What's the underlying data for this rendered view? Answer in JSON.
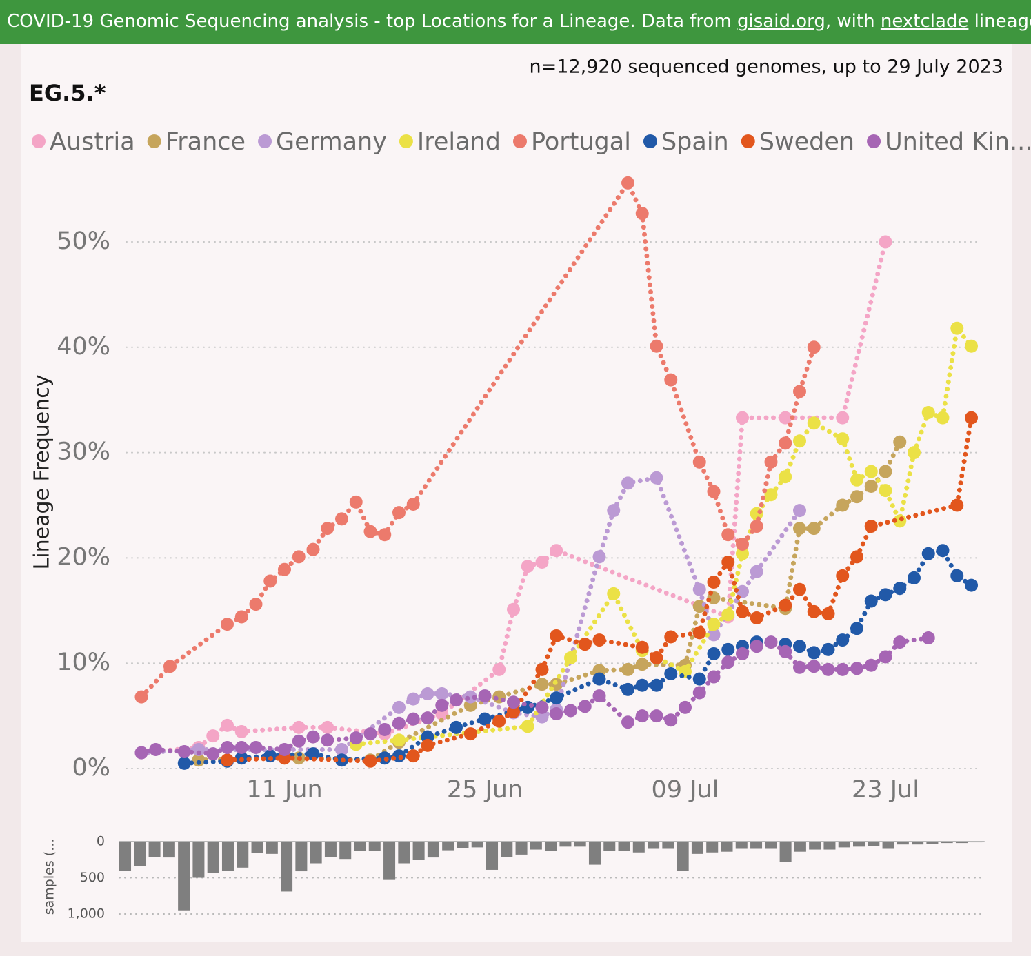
{
  "header": {
    "segments": [
      {
        "text": "COVID-19 Genomic Sequencing analysis - top Locations for a Lineage. Data from ",
        "link": false
      },
      {
        "text": "gisaid.org",
        "link": true
      },
      {
        "text": ", with ",
        "link": false
      },
      {
        "text": "nextclade",
        "link": true
      },
      {
        "text": " lineages Source fil",
        "link": false
      }
    ]
  },
  "chart_data": [
    {
      "type": "line",
      "title": "EG.5.*",
      "subtitle": "n=12,920 sequenced genomes, up to 29 July 2023",
      "ylabel": "Lineage Frequency",
      "legend": "top-left",
      "grid": true,
      "x": [
        "01 Jun",
        "02 Jun",
        "03 Jun",
        "04 Jun",
        "05 Jun",
        "06 Jun",
        "07 Jun",
        "08 Jun",
        "09 Jun",
        "10 Jun",
        "11 Jun",
        "12 Jun",
        "13 Jun",
        "14 Jun",
        "15 Jun",
        "16 Jun",
        "17 Jun",
        "18 Jun",
        "19 Jun",
        "20 Jun",
        "21 Jun",
        "22 Jun",
        "23 Jun",
        "24 Jun",
        "25 Jun",
        "26 Jun",
        "27 Jun",
        "28 Jun",
        "29 Jun",
        "30 Jun",
        "01 Jul",
        "02 Jul",
        "03 Jul",
        "04 Jul",
        "05 Jul",
        "06 Jul",
        "07 Jul",
        "08 Jul",
        "09 Jul",
        "10 Jul",
        "11 Jul",
        "12 Jul",
        "13 Jul",
        "14 Jul",
        "15 Jul",
        "16 Jul",
        "17 Jul",
        "18 Jul",
        "19 Jul",
        "20 Jul",
        "21 Jul",
        "22 Jul",
        "23 Jul",
        "24 Jul",
        "25 Jul",
        "26 Jul",
        "27 Jul",
        "28 Jul",
        "29 Jul"
      ],
      "xticks": [
        "11 Jun",
        "25 Jun",
        "09 Jul",
        "23 Jul"
      ],
      "ylim": [
        0,
        57
      ],
      "yticks": [
        {
          "value": 0,
          "label": "0%"
        },
        {
          "value": 10,
          "label": "10%"
        },
        {
          "value": 20,
          "label": "20%"
        },
        {
          "value": 30,
          "label": "30%"
        },
        {
          "value": 40,
          "label": "40%"
        },
        {
          "value": 50,
          "label": "50%"
        }
      ],
      "series": [
        {
          "name": "Austria",
          "color": "#f4a5c6",
          "x": [
            "01 Jun",
            "05 Jun",
            "06 Jun",
            "07 Jun",
            "08 Jun",
            "12 Jun",
            "14 Jun",
            "18 Jun",
            "22 Jun",
            "26 Jun",
            "27 Jun",
            "28 Jun",
            "29 Jun",
            "30 Jun",
            "12 Jul",
            "13 Jul",
            "16 Jul",
            "20 Jul",
            "23 Jul"
          ],
          "values": [
            1.5,
            2.0,
            3.1,
            4.1,
            3.5,
            3.9,
            3.9,
            3.3,
            5.2,
            9.4,
            15.1,
            19.2,
            19.6,
            20.7,
            14.4,
            33.3,
            33.3,
            33.3,
            50.0
          ]
        },
        {
          "name": "France",
          "color": "#c6a55c",
          "x": [
            "05 Jun",
            "11 Jun",
            "12 Jun",
            "17 Jun",
            "19 Jun",
            "24 Jun",
            "26 Jun",
            "29 Jun",
            "30 Jun",
            "03 Jul",
            "05 Jul",
            "06 Jul",
            "09 Jul",
            "10 Jul",
            "11 Jul",
            "16 Jul",
            "17 Jul",
            "18 Jul",
            "20 Jul",
            "21 Jul",
            "22 Jul",
            "23 Jul",
            "24 Jul"
          ],
          "values": [
            0.8,
            1.0,
            1.0,
            0.8,
            2.5,
            6.0,
            6.8,
            8.0,
            8.0,
            9.3,
            9.4,
            9.9,
            9.8,
            15.4,
            16.2,
            15.2,
            22.8,
            22.8,
            25.0,
            25.8,
            26.8,
            28.2,
            31.0
          ]
        },
        {
          "name": "Germany",
          "color": "#bb9ad4",
          "x": [
            "01 Jun",
            "05 Jun",
            "15 Jun",
            "19 Jun",
            "20 Jun",
            "21 Jun",
            "22 Jun",
            "24 Jun",
            "27 Jun",
            "29 Jun",
            "30 Jun",
            "03 Jul",
            "04 Jul",
            "05 Jul",
            "07 Jul",
            "10 Jul",
            "11 Jul",
            "13 Jul",
            "14 Jul",
            "17 Jul"
          ],
          "values": [
            1.5,
            1.8,
            1.8,
            5.8,
            6.6,
            7.1,
            7.1,
            6.8,
            5.3,
            4.9,
            5.6,
            20.1,
            24.5,
            27.1,
            27.6,
            17.0,
            12.7,
            16.8,
            18.7,
            24.5
          ]
        },
        {
          "name": "Ireland",
          "color": "#ebe146",
          "x": [
            "16 Jun",
            "19 Jun",
            "28 Jun",
            "01 Jul",
            "04 Jul",
            "06 Jul",
            "09 Jul",
            "11 Jul",
            "12 Jul",
            "13 Jul",
            "14 Jul",
            "15 Jul",
            "16 Jul",
            "17 Jul",
            "18 Jul",
            "20 Jul",
            "21 Jul",
            "22 Jul",
            "23 Jul",
            "24 Jul",
            "25 Jul",
            "26 Jul",
            "27 Jul",
            "28 Jul",
            "29 Jul"
          ],
          "values": [
            2.3,
            2.7,
            4.0,
            10.5,
            16.6,
            11.2,
            9.2,
            13.7,
            14.6,
            20.4,
            24.2,
            26.0,
            27.7,
            31.1,
            32.8,
            31.3,
            27.4,
            28.2,
            26.4,
            23.5,
            30.0,
            33.8,
            33.3,
            41.8,
            40.1
          ]
        },
        {
          "name": "Portugal",
          "color": "#ec7a6c",
          "x": [
            "01 Jun",
            "03 Jun",
            "07 Jun",
            "08 Jun",
            "09 Jun",
            "10 Jun",
            "11 Jun",
            "12 Jun",
            "13 Jun",
            "14 Jun",
            "15 Jun",
            "16 Jun",
            "17 Jun",
            "18 Jun",
            "19 Jun",
            "20 Jun",
            "05 Jul",
            "06 Jul",
            "07 Jul",
            "08 Jul",
            "10 Jul",
            "11 Jul",
            "12 Jul",
            "13 Jul",
            "14 Jul",
            "15 Jul",
            "16 Jul",
            "17 Jul",
            "18 Jul"
          ],
          "values": [
            6.8,
            9.7,
            13.7,
            14.4,
            15.6,
            17.8,
            18.9,
            20.1,
            20.8,
            22.8,
            23.7,
            25.3,
            22.5,
            22.2,
            24.3,
            25.1,
            55.6,
            52.7,
            40.1,
            36.9,
            29.1,
            26.3,
            22.2,
            21.3,
            23.0,
            29.1,
            30.9,
            35.8,
            40.0
          ]
        },
        {
          "name": "Spain",
          "color": "#2159a8",
          "x": [
            "04 Jun",
            "07 Jun",
            "08 Jun",
            "10 Jun",
            "13 Jun",
            "15 Jun",
            "18 Jun",
            "19 Jun",
            "21 Jun",
            "23 Jun",
            "25 Jun",
            "28 Jun",
            "30 Jun",
            "03 Jul",
            "05 Jul",
            "06 Jul",
            "07 Jul",
            "08 Jul",
            "10 Jul",
            "11 Jul",
            "12 Jul",
            "13 Jul",
            "14 Jul",
            "16 Jul",
            "17 Jul",
            "18 Jul",
            "19 Jul",
            "20 Jul",
            "21 Jul",
            "22 Jul",
            "23 Jul",
            "24 Jul",
            "25 Jul",
            "26 Jul",
            "27 Jul",
            "28 Jul",
            "29 Jul"
          ],
          "values": [
            0.5,
            0.7,
            1.0,
            1.2,
            1.4,
            0.8,
            1.0,
            1.2,
            3.0,
            3.9,
            4.7,
            5.8,
            6.7,
            8.5,
            7.5,
            7.9,
            7.9,
            9.0,
            8.5,
            10.9,
            11.3,
            11.6,
            12.0,
            11.8,
            11.6,
            11.0,
            11.3,
            12.2,
            13.3,
            15.9,
            16.5,
            17.1,
            18.1,
            20.4,
            20.7,
            18.3,
            17.4
          ]
        },
        {
          "name": "Sweden",
          "color": "#e2561d",
          "x": [
            "07 Jun",
            "11 Jun",
            "17 Jun",
            "20 Jun",
            "21 Jun",
            "24 Jun",
            "26 Jun",
            "27 Jun",
            "29 Jun",
            "30 Jun",
            "02 Jul",
            "03 Jul",
            "06 Jul",
            "07 Jul",
            "08 Jul",
            "10 Jul",
            "11 Jul",
            "12 Jul",
            "13 Jul",
            "14 Jul",
            "16 Jul",
            "17 Jul",
            "18 Jul",
            "19 Jul",
            "20 Jul",
            "21 Jul",
            "22 Jul",
            "28 Jul",
            "29 Jul"
          ],
          "values": [
            0.8,
            1.0,
            0.7,
            1.2,
            2.2,
            3.3,
            4.5,
            5.4,
            9.4,
            12.6,
            11.8,
            12.2,
            11.5,
            10.5,
            12.5,
            12.9,
            17.7,
            19.6,
            14.9,
            14.3,
            15.5,
            17.0,
            14.9,
            14.7,
            18.3,
            20.1,
            23.0,
            25.0,
            33.3
          ]
        },
        {
          "name": "United Kin...",
          "color": "#a665b4",
          "x": [
            "01 Jun",
            "02 Jun",
            "04 Jun",
            "06 Jun",
            "07 Jun",
            "08 Jun",
            "09 Jun",
            "11 Jun",
            "12 Jun",
            "13 Jun",
            "14 Jun",
            "16 Jun",
            "17 Jun",
            "18 Jun",
            "19 Jun",
            "20 Jun",
            "21 Jun",
            "22 Jun",
            "23 Jun",
            "25 Jun",
            "27 Jun",
            "29 Jun",
            "30 Jun",
            "01 Jul",
            "02 Jul",
            "03 Jul",
            "05 Jul",
            "06 Jul",
            "07 Jul",
            "08 Jul",
            "09 Jul",
            "10 Jul",
            "11 Jul",
            "12 Jul",
            "13 Jul",
            "14 Jul",
            "15 Jul",
            "16 Jul",
            "17 Jul",
            "18 Jul",
            "19 Jul",
            "20 Jul",
            "21 Jul",
            "22 Jul",
            "23 Jul",
            "24 Jul",
            "26 Jul"
          ],
          "values": [
            1.5,
            1.8,
            1.6,
            1.4,
            2.0,
            2.0,
            2.0,
            1.8,
            2.6,
            3.0,
            2.7,
            2.9,
            3.3,
            3.7,
            4.3,
            4.7,
            4.8,
            6.0,
            6.5,
            6.9,
            6.3,
            5.8,
            5.2,
            5.5,
            5.9,
            6.9,
            4.4,
            5.0,
            5.0,
            4.6,
            5.8,
            7.2,
            8.7,
            10.1,
            10.9,
            11.6,
            12.0,
            11.1,
            9.6,
            9.7,
            9.4,
            9.4,
            9.5,
            9.8,
            10.6,
            12.0,
            12.4
          ]
        }
      ]
    },
    {
      "type": "bar",
      "ylabel": "samples (...",
      "color": "#7f7f7f",
      "yreverse": true,
      "grid": true,
      "ylim": [
        0,
        1000
      ],
      "yticks": [
        0,
        500,
        {
          "value": 1000,
          "label": "1,000"
        }
      ],
      "categories": [
        null,
        null,
        null,
        null,
        null,
        null,
        null,
        null,
        null,
        null,
        null,
        null,
        null,
        null,
        null,
        null,
        null,
        null,
        null,
        null,
        null,
        null,
        null,
        null,
        null,
        null,
        null,
        null,
        null,
        null,
        null,
        null,
        null,
        null,
        null,
        null,
        null,
        null,
        null,
        null,
        null,
        null,
        null,
        null,
        null,
        null,
        null,
        null,
        null,
        null,
        null,
        null,
        null,
        null,
        null,
        null,
        null,
        null,
        null
      ],
      "values": [
        400,
        340,
        210,
        220,
        950,
        500,
        430,
        400,
        360,
        160,
        170,
        690,
        410,
        300,
        210,
        240,
        130,
        130,
        530,
        300,
        250,
        220,
        120,
        90,
        80,
        390,
        210,
        180,
        110,
        130,
        70,
        70,
        320,
        130,
        130,
        150,
        100,
        100,
        400,
        170,
        150,
        140,
        100,
        100,
        100,
        280,
        140,
        110,
        110,
        80,
        70,
        60,
        100,
        40,
        40,
        30,
        20,
        20,
        10
      ]
    }
  ]
}
